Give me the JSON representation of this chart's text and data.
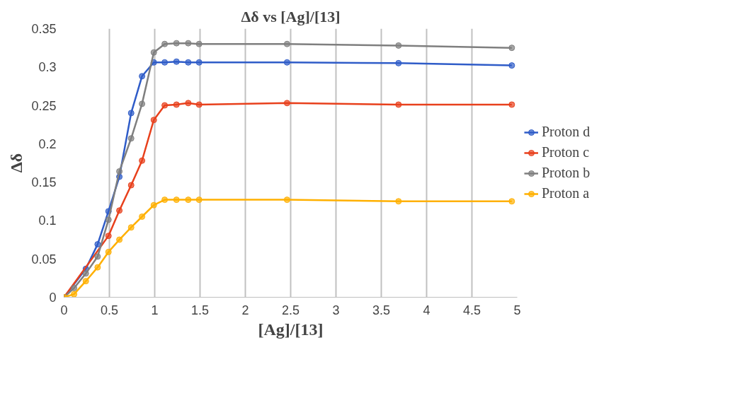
{
  "chart_data": {
    "type": "line",
    "title": "Δδ vs [Ag]/[13]",
    "xlabel": "[Ag]/[13]",
    "ylabel": "Δδ",
    "x": [
      0,
      0.11,
      0.24,
      0.37,
      0.49,
      0.61,
      0.74,
      0.86,
      0.99,
      1.11,
      1.24,
      1.37,
      1.49,
      2.46,
      3.69,
      4.94
    ],
    "series": [
      {
        "name": "Proton d",
        "color": "#2f5cc8",
        "values": [
          0,
          null,
          0.037,
          0.069,
          0.112,
          0.157,
          0.24,
          0.288,
          0.306,
          0.306,
          0.307,
          0.306,
          0.306,
          0.306,
          0.305,
          0.302
        ]
      },
      {
        "name": "Proton c",
        "color": "#e8401c",
        "values": [
          0,
          null,
          null,
          null,
          0.08,
          0.113,
          0.146,
          0.178,
          0.231,
          0.25,
          0.251,
          0.253,
          0.251,
          0.253,
          0.251,
          0.251
        ]
      },
      {
        "name": "Proton b",
        "color": "#7f7f7f",
        "values": [
          0,
          0.012,
          0.031,
          0.053,
          0.101,
          0.164,
          0.207,
          0.252,
          0.319,
          0.33,
          0.331,
          0.331,
          0.33,
          0.33,
          0.328,
          0.325
        ]
      },
      {
        "name": "Proton a",
        "color": "#ffb000",
        "values": [
          0,
          0.004,
          0.021,
          0.039,
          0.059,
          0.075,
          0.091,
          0.105,
          0.12,
          0.127,
          0.127,
          0.127,
          0.127,
          0.127,
          0.125,
          0.125
        ]
      }
    ],
    "xlim": [
      0,
      5
    ],
    "xticks": [
      0,
      0.5,
      1,
      1.5,
      2,
      2.5,
      3,
      3.5,
      4,
      4.5,
      5
    ],
    "ylim": [
      0,
      0.35
    ],
    "yticks": [
      0,
      0.05,
      0.1,
      0.15,
      0.2,
      0.25,
      0.3,
      0.35
    ],
    "grid": "x",
    "legend": "right",
    "marker": "circle",
    "line_style": "solid"
  }
}
